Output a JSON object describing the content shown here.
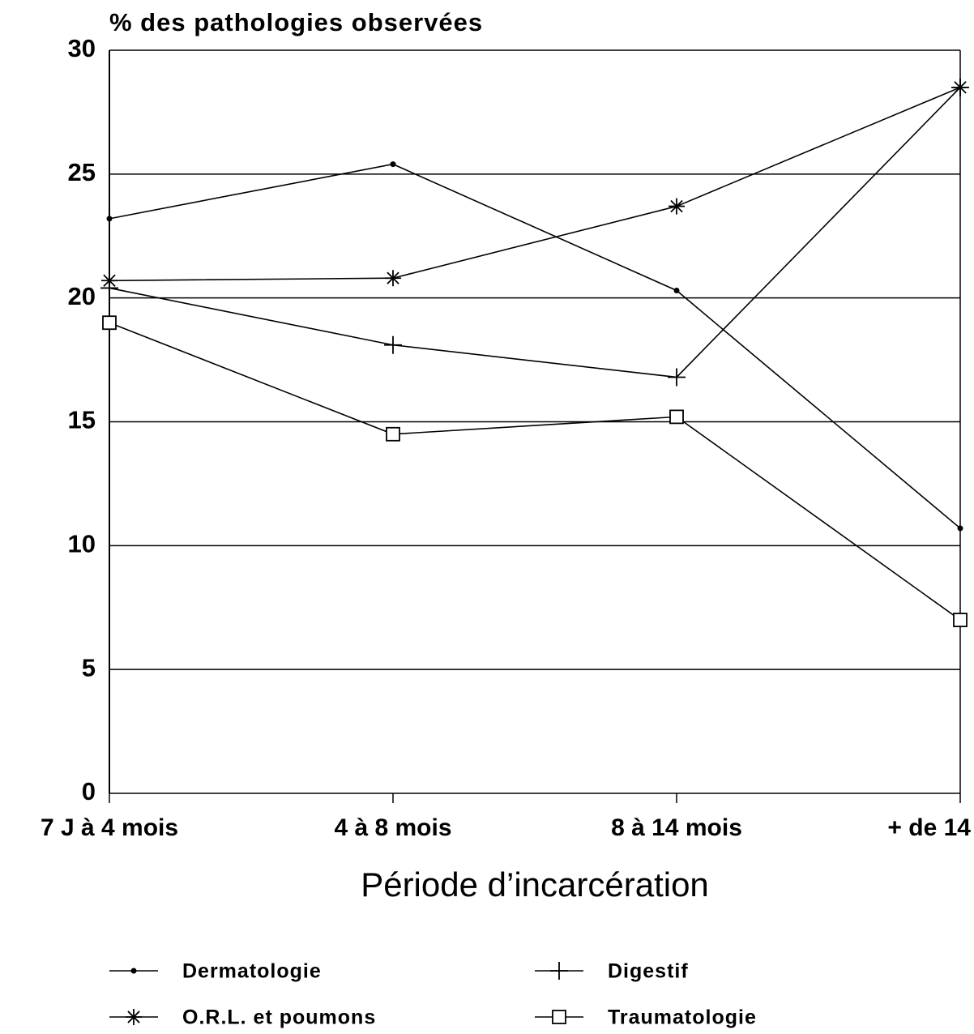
{
  "chart_data": {
    "type": "line",
    "ylabel": "% des pathologies observées",
    "xlabel": "Période d’incarcération",
    "categories": [
      "7 J à 4 mois",
      "4 à 8 mois",
      "8 à 14 mois",
      "+ de 14"
    ],
    "series": [
      {
        "name": "Dermatologie",
        "color": "#000000",
        "marker": "dot",
        "values": [
          23.2,
          25.4,
          20.3,
          10.7
        ]
      },
      {
        "name": "Digestif",
        "color": "#000000",
        "marker": "plus",
        "values": [
          20.4,
          18.1,
          16.8,
          28.5
        ]
      },
      {
        "name": "O.R.L. et poumons",
        "color": "#000000",
        "marker": "star",
        "values": [
          20.7,
          20.8,
          23.7,
          28.5
        ]
      },
      {
        "name": "Traumatologie",
        "color": "#000000",
        "marker": "square",
        "values": [
          19.0,
          14.5,
          15.2,
          7.0
        ]
      }
    ],
    "ylim": [
      0,
      30
    ],
    "yticks": [
      0,
      5,
      10,
      15,
      20,
      25,
      30
    ],
    "grid": true
  }
}
